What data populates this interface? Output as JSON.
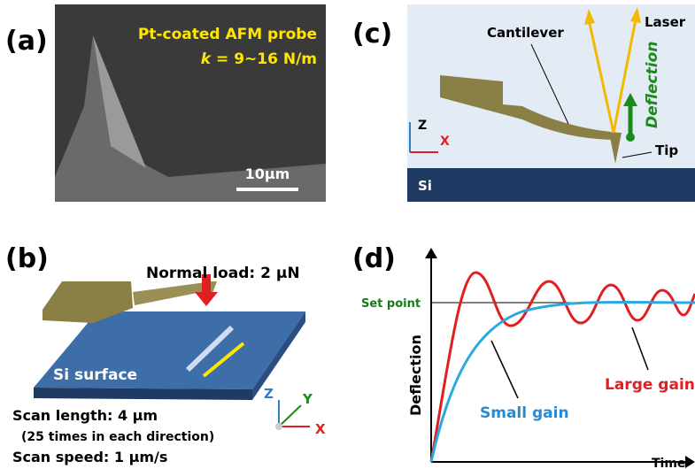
{
  "panels": {
    "a": {
      "label": "(a)",
      "title": "Pt-coated AFM probe",
      "k_symbol": "k",
      "k_value": " = 9~16 N/m",
      "scale_bar": "10µm"
    },
    "b": {
      "label": "(b)",
      "load": "Normal load: 2 µN",
      "surface": "Si surface",
      "scan_length": "Scan length: 4 µm",
      "scan_note": "(25 times in each direction)",
      "scan_speed": "Scan speed: 1 µm/s",
      "axis_z": "Z",
      "axis_y": "Y",
      "axis_x": "X"
    },
    "c": {
      "label": "(c)",
      "cantilever": "Cantilever",
      "laser": "Laser",
      "deflection": "Deflection",
      "tip": "Tip",
      "substrate": "Si",
      "axis_z": "Z",
      "axis_x": "X"
    },
    "d": {
      "label": "(d)",
      "set_point": "Set point",
      "y_axis": "Deflection",
      "x_axis": "Time",
      "large_gain": "Large gain",
      "small_gain": "Small gain"
    }
  }
}
